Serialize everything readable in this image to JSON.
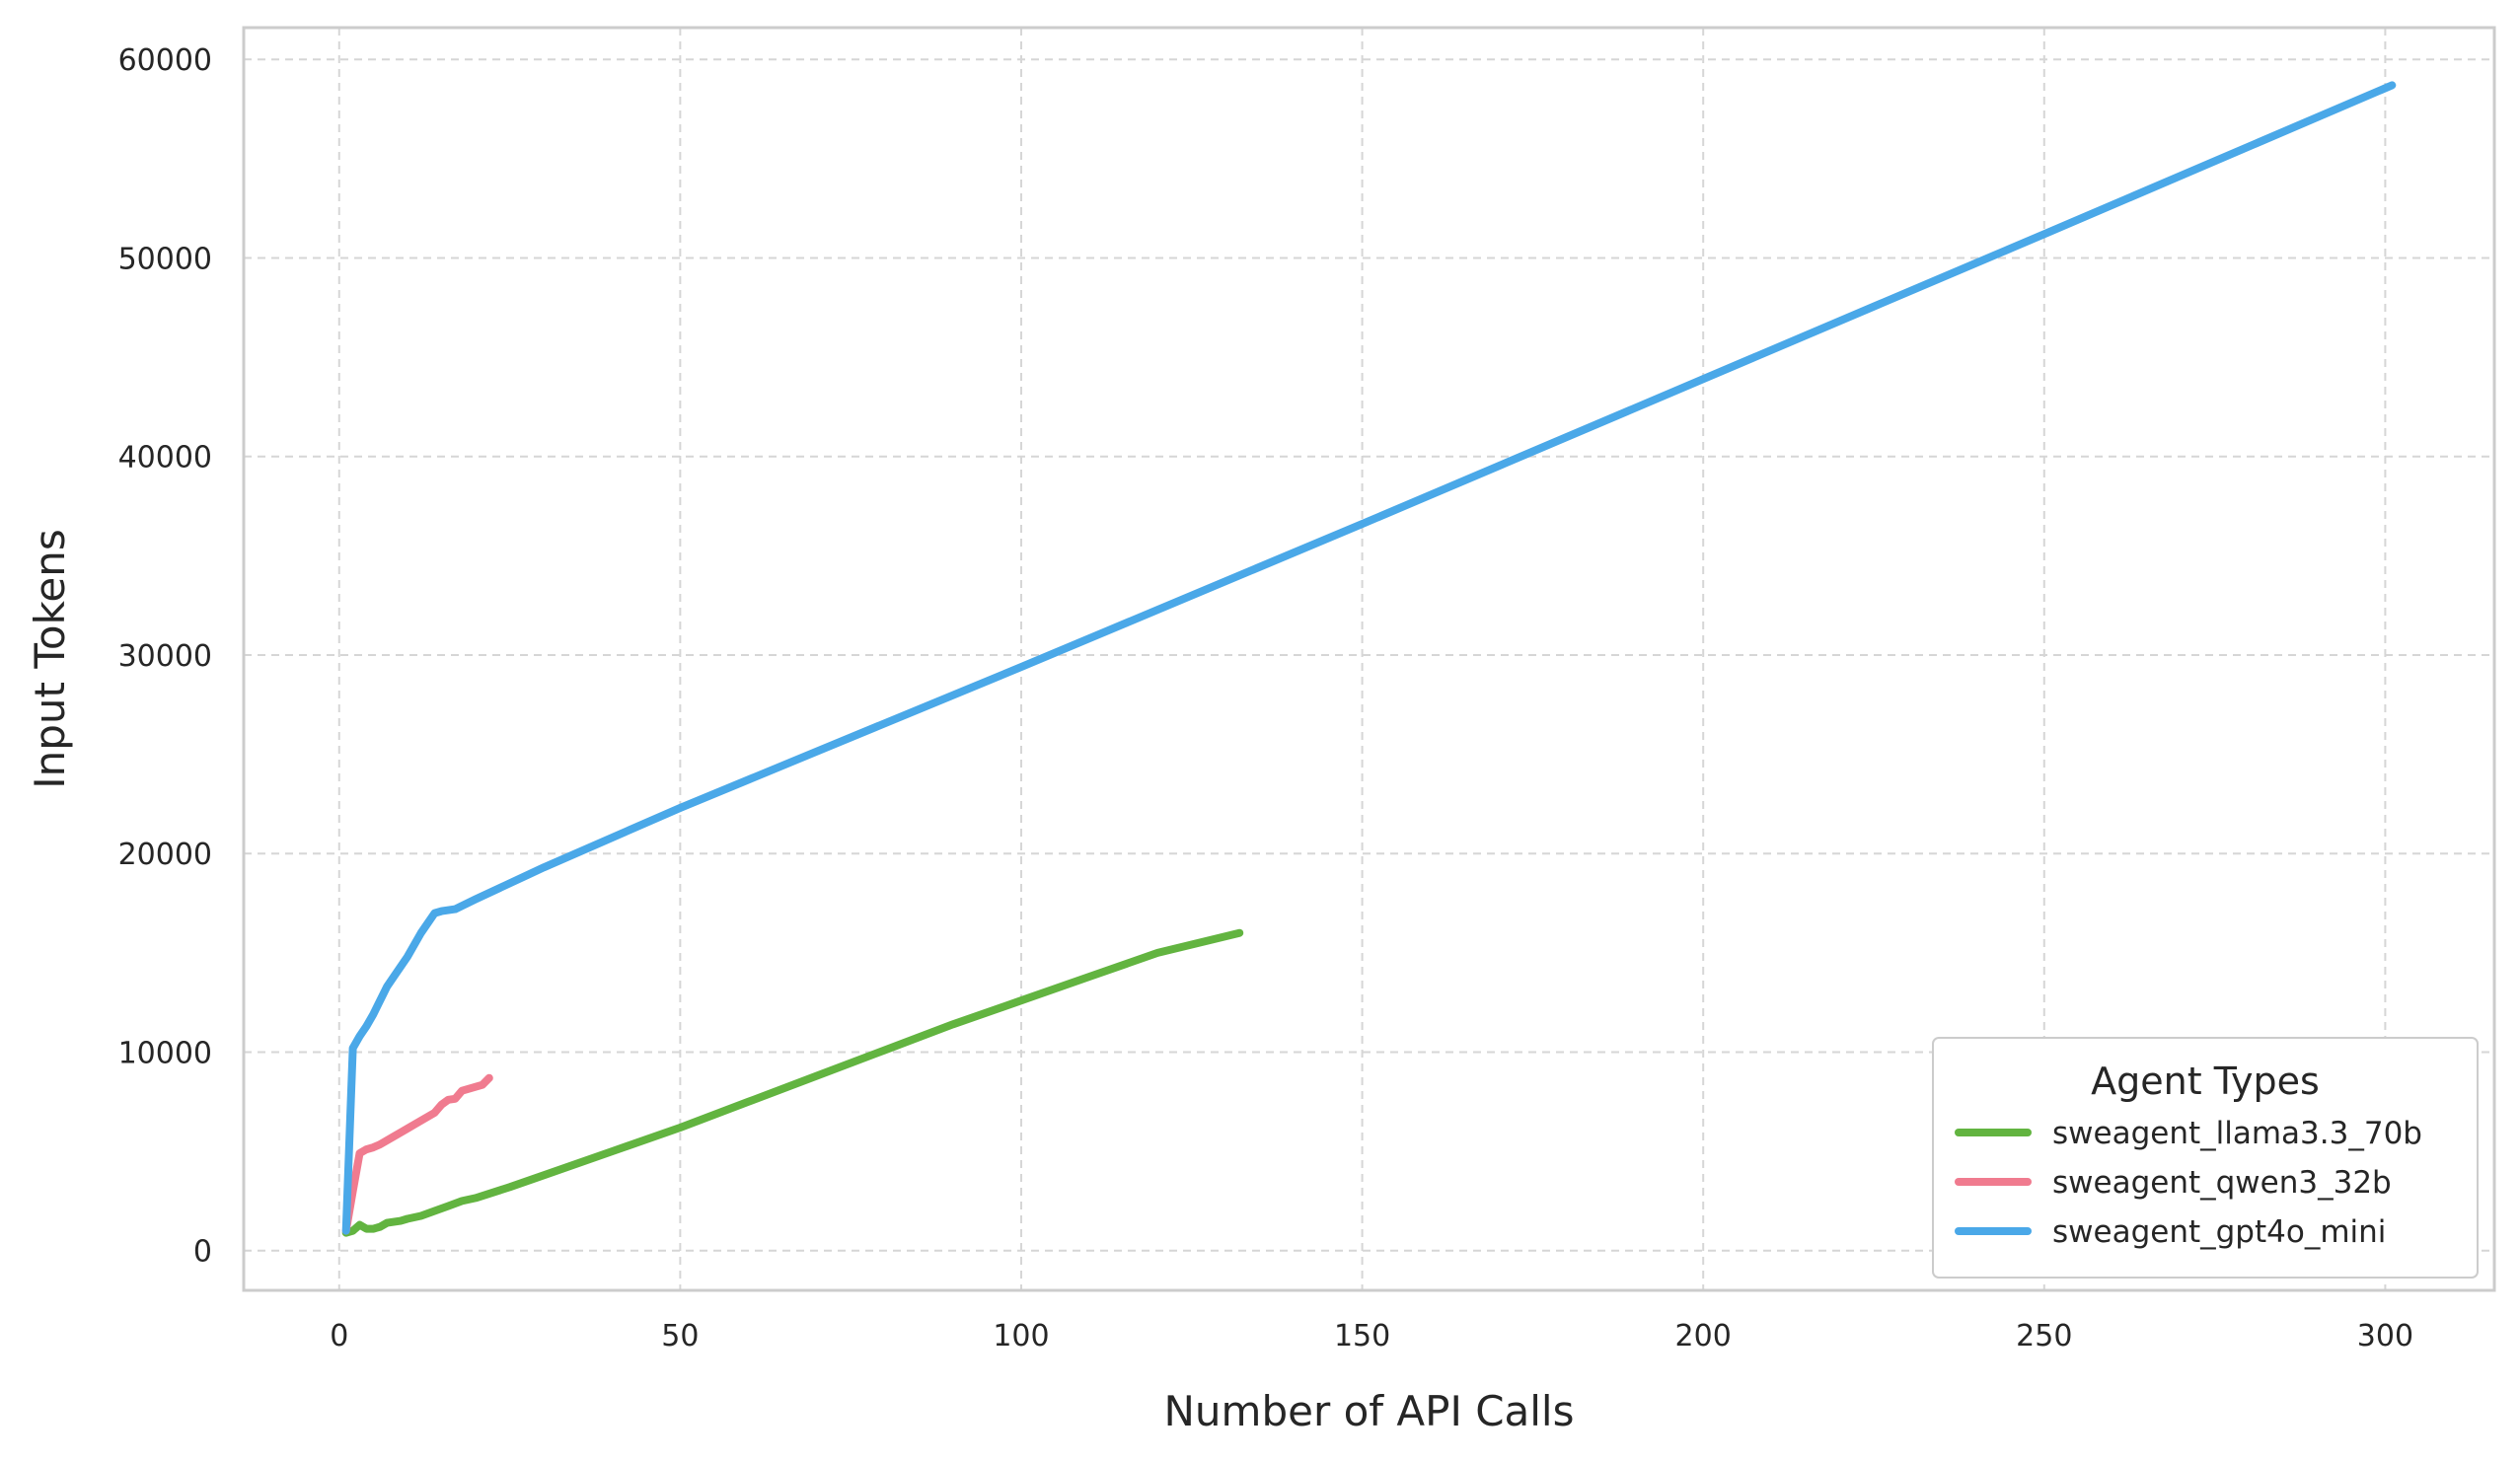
{
  "chart_data": {
    "type": "line",
    "xlabel": "Number of API Calls",
    "ylabel": "Input Tokens",
    "xlim": [
      -14,
      316
    ],
    "ylim": [
      -2000,
      61600
    ],
    "xticks": [
      0,
      50,
      100,
      150,
      200,
      250,
      300
    ],
    "yticks": [
      0,
      10000,
      20000,
      30000,
      40000,
      50000,
      60000
    ],
    "grid": true,
    "grid_style": "dashed",
    "legend_title": "Agent Types",
    "legend_position": "lower-right",
    "series": [
      {
        "name": "sweagent_llama3.3_70b",
        "color": "#62b440",
        "x": [
          1,
          2,
          3,
          4,
          5,
          6,
          7,
          8,
          9,
          10,
          12,
          14,
          16,
          18,
          20,
          25,
          30,
          40,
          50,
          60,
          70,
          80,
          90,
          100,
          110,
          120,
          132
        ],
        "y": [
          900,
          1000,
          1300,
          1100,
          1100,
          1200,
          1400,
          1450,
          1500,
          1600,
          1750,
          2000,
          2250,
          2500,
          2650,
          3200,
          3800,
          5000,
          6200,
          7500,
          8800,
          10100,
          11400,
          12600,
          13800,
          15000,
          16000
        ]
      },
      {
        "name": "sweagent_qwen3_32b",
        "color": "#f07b8f",
        "x": [
          1,
          2,
          3,
          4,
          5,
          6,
          8,
          10,
          12,
          14,
          15,
          16,
          17,
          18,
          19,
          20,
          21,
          22
        ],
        "y": [
          1000,
          3000,
          4900,
          5100,
          5200,
          5350,
          5750,
          6150,
          6550,
          6950,
          7350,
          7600,
          7650,
          8050,
          8150,
          8250,
          8350,
          8700
        ]
      },
      {
        "name": "sweagent_gpt4o_mini",
        "color": "#4aa8e8",
        "x": [
          1,
          2,
          3,
          4,
          5,
          6,
          7,
          8,
          10,
          12,
          14,
          15,
          16,
          17,
          20,
          30,
          50,
          100,
          150,
          200,
          250,
          301
        ],
        "y": [
          1000,
          10200,
          10800,
          11300,
          11900,
          12600,
          13300,
          13800,
          14800,
          16000,
          17000,
          17100,
          17150,
          17200,
          17700,
          19300,
          22300,
          29400,
          36600,
          43900,
          51200,
          58700
        ]
      }
    ]
  }
}
